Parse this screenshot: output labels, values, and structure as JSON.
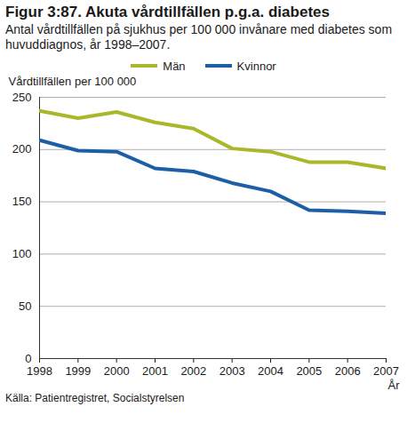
{
  "chart_data": {
    "type": "line",
    "title": "Figur 3:87. Akuta vårdtillfällen p.g.a. diabetes",
    "subtitle": "Antal vårdtillfällen på sjukhus per 100 000 invånare med diabetes som huvuddiagnos, år 1998–2007.",
    "y_label": "Vårdtillfällen per 100 000",
    "x_label": "År",
    "source": "Källa: Patientregistret, Socialstyrelsen",
    "x": [
      1998,
      1999,
      2000,
      2001,
      2002,
      2003,
      2004,
      2005,
      2006,
      2007
    ],
    "series": [
      {
        "name": "Män",
        "color": "#a9b82a",
        "values": [
          237,
          230,
          236,
          226,
          220,
          201,
          198,
          188,
          188,
          182
        ]
      },
      {
        "name": "Kvinnor",
        "color": "#1d5fa6",
        "values": [
          209,
          199,
          198,
          182,
          179,
          168,
          160,
          142,
          141,
          139
        ]
      }
    ],
    "xlim": [
      1998,
      2007
    ],
    "xticks": [
      1998,
      1999,
      2000,
      2001,
      2002,
      2003,
      2004,
      2005,
      2006,
      2007
    ],
    "ylim": [
      0,
      250
    ],
    "yticks": [
      0,
      50,
      100,
      150,
      200,
      250
    ],
    "grid": true,
    "legend": "top"
  }
}
